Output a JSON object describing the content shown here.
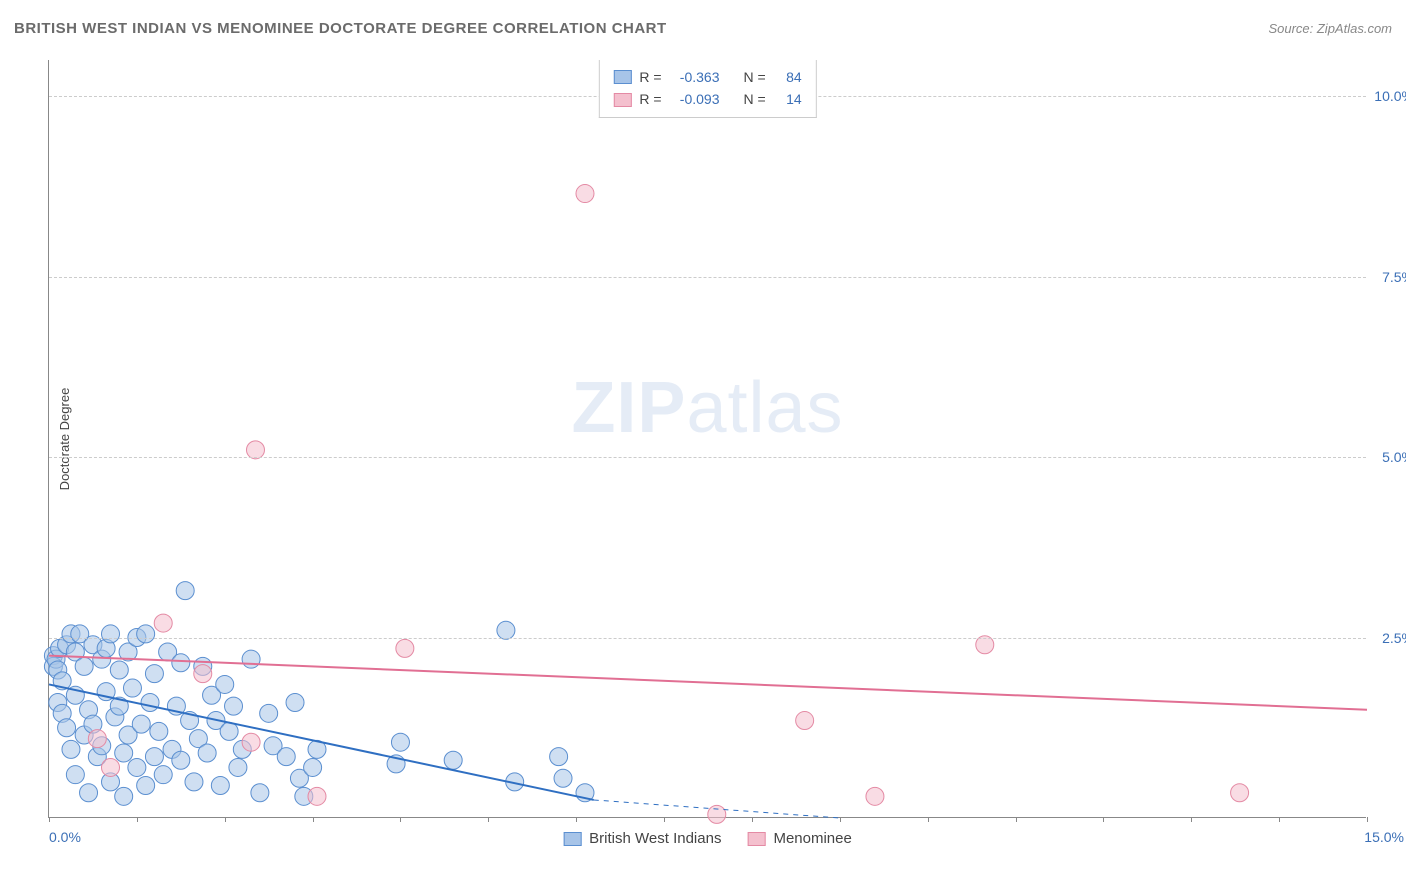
{
  "title": "BRITISH WEST INDIAN VS MENOMINEE DOCTORATE DEGREE CORRELATION CHART",
  "source": "Source: ZipAtlas.com",
  "watermark": {
    "bold": "ZIP",
    "rest": "atlas"
  },
  "yaxis_title": "Doctorate Degree",
  "chart": {
    "type": "scatter",
    "xlim": [
      0,
      15
    ],
    "ylim": [
      0,
      10.5
    ],
    "xtick_positions": [
      0,
      1,
      2,
      3,
      4,
      5,
      6,
      7,
      8,
      9,
      10,
      11,
      12,
      13,
      14,
      15
    ],
    "xaxis_label_left": "0.0%",
    "xaxis_label_right": "15.0%",
    "yticks": [
      2.5,
      5.0,
      7.5,
      10.0
    ],
    "ytick_labels": [
      "2.5%",
      "5.0%",
      "7.5%",
      "10.0%"
    ],
    "grid_color": "#cccccc",
    "background_color": "#ffffff",
    "marker_radius": 9,
    "marker_opacity": 0.55,
    "line_width": 2,
    "series": [
      {
        "name": "British West Indians",
        "fill_color": "#a7c4e8",
        "stroke_color": "#5b8fd0",
        "line_color": "#2f6fc2",
        "R": "-0.363",
        "N": "84",
        "trend": {
          "x1": 0,
          "y1": 1.85,
          "x2": 6.2,
          "y2": 0.25,
          "dash_from_x": 6.2,
          "dash_to_x": 9.0
        },
        "points": [
          [
            0.05,
            2.25
          ],
          [
            0.05,
            2.1
          ],
          [
            0.08,
            2.2
          ],
          [
            0.1,
            2.05
          ],
          [
            0.1,
            1.6
          ],
          [
            0.12,
            2.35
          ],
          [
            0.15,
            1.9
          ],
          [
            0.15,
            1.45
          ],
          [
            0.2,
            2.4
          ],
          [
            0.2,
            1.25
          ],
          [
            0.25,
            2.55
          ],
          [
            0.25,
            0.95
          ],
          [
            0.3,
            2.3
          ],
          [
            0.3,
            1.7
          ],
          [
            0.3,
            0.6
          ],
          [
            0.35,
            2.55
          ],
          [
            0.4,
            1.15
          ],
          [
            0.4,
            2.1
          ],
          [
            0.45,
            1.5
          ],
          [
            0.45,
            0.35
          ],
          [
            0.5,
            2.4
          ],
          [
            0.5,
            1.3
          ],
          [
            0.55,
            0.85
          ],
          [
            0.6,
            2.2
          ],
          [
            0.6,
            1.0
          ],
          [
            0.65,
            2.35
          ],
          [
            0.65,
            1.75
          ],
          [
            0.7,
            2.55
          ],
          [
            0.7,
            0.5
          ],
          [
            0.75,
            1.4
          ],
          [
            0.8,
            1.55
          ],
          [
            0.8,
            2.05
          ],
          [
            0.85,
            0.9
          ],
          [
            0.85,
            0.3
          ],
          [
            0.9,
            2.3
          ],
          [
            0.9,
            1.15
          ],
          [
            0.95,
            1.8
          ],
          [
            1.0,
            2.5
          ],
          [
            1.0,
            0.7
          ],
          [
            1.05,
            1.3
          ],
          [
            1.1,
            2.55
          ],
          [
            1.1,
            0.45
          ],
          [
            1.15,
            1.6
          ],
          [
            1.2,
            2.0
          ],
          [
            1.2,
            0.85
          ],
          [
            1.25,
            1.2
          ],
          [
            1.3,
            0.6
          ],
          [
            1.35,
            2.3
          ],
          [
            1.4,
            0.95
          ],
          [
            1.45,
            1.55
          ],
          [
            1.5,
            2.15
          ],
          [
            1.5,
            0.8
          ],
          [
            1.55,
            3.15
          ],
          [
            1.6,
            1.35
          ],
          [
            1.65,
            0.5
          ],
          [
            1.7,
            1.1
          ],
          [
            1.75,
            2.1
          ],
          [
            1.8,
            0.9
          ],
          [
            1.85,
            1.7
          ],
          [
            1.9,
            1.35
          ],
          [
            1.95,
            0.45
          ],
          [
            2.0,
            1.85
          ],
          [
            2.05,
            1.2
          ],
          [
            2.1,
            1.55
          ],
          [
            2.15,
            0.7
          ],
          [
            2.2,
            0.95
          ],
          [
            2.3,
            2.2
          ],
          [
            2.4,
            0.35
          ],
          [
            2.5,
            1.45
          ],
          [
            2.55,
            1.0
          ],
          [
            2.7,
            0.85
          ],
          [
            2.8,
            1.6
          ],
          [
            2.85,
            0.55
          ],
          [
            2.9,
            0.3
          ],
          [
            3.0,
            0.7
          ],
          [
            3.05,
            0.95
          ],
          [
            3.95,
            0.75
          ],
          [
            4.0,
            1.05
          ],
          [
            4.6,
            0.8
          ],
          [
            5.2,
            2.6
          ],
          [
            5.3,
            0.5
          ],
          [
            5.8,
            0.85
          ],
          [
            5.85,
            0.55
          ],
          [
            6.1,
            0.35
          ]
        ]
      },
      {
        "name": "Menominee",
        "fill_color": "#f4c0ce",
        "stroke_color": "#e48aa4",
        "line_color": "#e16f93",
        "R": "-0.093",
        "N": "14",
        "trend": {
          "x1": 0,
          "y1": 2.25,
          "x2": 15,
          "y2": 1.5
        },
        "points": [
          [
            0.55,
            1.1
          ],
          [
            0.7,
            0.7
          ],
          [
            1.3,
            2.7
          ],
          [
            1.75,
            2.0
          ],
          [
            2.3,
            1.05
          ],
          [
            2.35,
            5.1
          ],
          [
            3.05,
            0.3
          ],
          [
            4.05,
            2.35
          ],
          [
            6.1,
            8.65
          ],
          [
            7.6,
            0.05
          ],
          [
            8.6,
            1.35
          ],
          [
            9.4,
            0.3
          ],
          [
            10.65,
            2.4
          ],
          [
            13.55,
            0.35
          ]
        ]
      }
    ]
  },
  "top_legend": {
    "rows": [
      {
        "swatch_fill": "#a7c4e8",
        "swatch_stroke": "#5b8fd0",
        "R_label": "R =",
        "R_value": "-0.363",
        "N_label": "N =",
        "N_value": "84"
      },
      {
        "swatch_fill": "#f4c0ce",
        "swatch_stroke": "#e48aa4",
        "R_label": "R =",
        "R_value": "-0.093",
        "N_label": "N =",
        "N_value": "14"
      }
    ]
  },
  "bottom_legend": {
    "items": [
      {
        "swatch_fill": "#a7c4e8",
        "swatch_stroke": "#5b8fd0",
        "label": "British West Indians"
      },
      {
        "swatch_fill": "#f4c0ce",
        "swatch_stroke": "#e48aa4",
        "label": "Menominee"
      }
    ]
  }
}
